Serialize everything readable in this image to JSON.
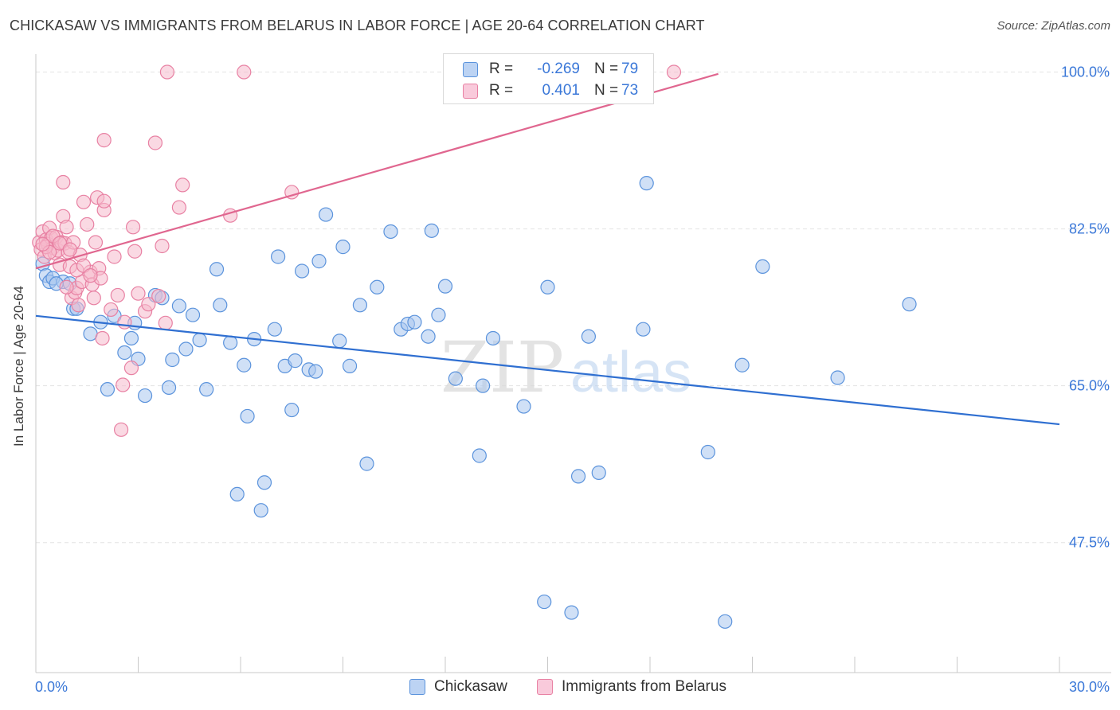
{
  "title": "CHICKASAW VS IMMIGRANTS FROM BELARUS IN LABOR FORCE | AGE 20-64 CORRELATION CHART",
  "source": "Source: ZipAtlas.com",
  "watermark": {
    "zip": "ZIP",
    "atlas": "atlas"
  },
  "legend": {
    "r_label": "R =",
    "n_label": "N =",
    "rows": [
      {
        "r": "-0.269",
        "n": "79"
      },
      {
        "r": "0.401",
        "n": "73"
      }
    ]
  },
  "colors": {
    "blue_fill": "#a9c6ef",
    "blue_stroke": "#5b93dc",
    "blue_line": "#2f6fd1",
    "pink_fill": "#f6b9cc",
    "pink_stroke": "#e881a3",
    "pink_line": "#e0668f",
    "axis_text": "#3b78d8",
    "grid": "#e3e3e3"
  },
  "chart_data": {
    "type": "scatter",
    "title": "CHICKASAW VS IMMIGRANTS FROM BELARUS IN LABOR FORCE | AGE 20-64 CORRELATION CHART",
    "xlabel": "",
    "ylabel": "In Labor Force | Age 20-64",
    "xlim": [
      0,
      30
    ],
    "ylim": [
      33,
      102
    ],
    "x_tick_labels": [
      "0.0%",
      "30.0%"
    ],
    "y_ticks": [
      100.0,
      82.5,
      65.0,
      47.5
    ],
    "y_tick_labels": [
      "100.0%",
      "82.5%",
      "65.0%",
      "47.5%"
    ],
    "grid": true,
    "legend_position": "top-center",
    "series": [
      {
        "name": "Chickasaw",
        "color": "#5b93dc",
        "r": -0.269,
        "n": 79,
        "trend": {
          "x": [
            0,
            30
          ],
          "y": [
            72.8,
            60.7
          ]
        },
        "points": [
          [
            0.2,
            78.6
          ],
          [
            0.3,
            77.3
          ],
          [
            0.4,
            76.6
          ],
          [
            0.5,
            77.0
          ],
          [
            0.8,
            76.6
          ],
          [
            1.0,
            76.4
          ],
          [
            1.1,
            73.6
          ],
          [
            1.2,
            73.6
          ],
          [
            1.6,
            70.8
          ],
          [
            1.9,
            72.1
          ],
          [
            2.1,
            64.6
          ],
          [
            2.3,
            72.8
          ],
          [
            2.6,
            68.7
          ],
          [
            2.8,
            70.3
          ],
          [
            2.9,
            72.0
          ],
          [
            3.0,
            68.0
          ],
          [
            3.2,
            63.9
          ],
          [
            3.5,
            75.1
          ],
          [
            3.7,
            74.8
          ],
          [
            3.9,
            64.8
          ],
          [
            4.0,
            67.9
          ],
          [
            4.2,
            73.9
          ],
          [
            4.4,
            69.1
          ],
          [
            4.6,
            72.9
          ],
          [
            4.8,
            70.1
          ],
          [
            5.0,
            64.6
          ],
          [
            5.3,
            78.0
          ],
          [
            5.4,
            74.0
          ],
          [
            5.7,
            69.8
          ],
          [
            5.9,
            52.9
          ],
          [
            6.1,
            67.3
          ],
          [
            6.2,
            61.6
          ],
          [
            6.4,
            70.2
          ],
          [
            6.6,
            51.1
          ],
          [
            6.7,
            54.2
          ],
          [
            7.0,
            71.3
          ],
          [
            7.1,
            79.4
          ],
          [
            7.3,
            67.2
          ],
          [
            7.5,
            62.3
          ],
          [
            7.6,
            67.8
          ],
          [
            7.8,
            77.8
          ],
          [
            8.0,
            66.8
          ],
          [
            8.2,
            66.6
          ],
          [
            8.3,
            78.9
          ],
          [
            8.5,
            84.1
          ],
          [
            8.9,
            70.0
          ],
          [
            9.0,
            80.5
          ],
          [
            9.2,
            67.2
          ],
          [
            9.5,
            74.0
          ],
          [
            9.7,
            56.3
          ],
          [
            10.0,
            76.0
          ],
          [
            10.4,
            82.2
          ],
          [
            10.7,
            71.3
          ],
          [
            10.9,
            71.9
          ],
          [
            11.1,
            72.1
          ],
          [
            11.5,
            70.5
          ],
          [
            11.6,
            82.3
          ],
          [
            11.8,
            72.9
          ],
          [
            12.0,
            76.1
          ],
          [
            12.3,
            65.8
          ],
          [
            13.0,
            57.2
          ],
          [
            13.1,
            65.0
          ],
          [
            13.4,
            70.3
          ],
          [
            14.3,
            62.7
          ],
          [
            14.9,
            40.9
          ],
          [
            15.0,
            76.0
          ],
          [
            15.7,
            39.7
          ],
          [
            15.9,
            54.9
          ],
          [
            16.2,
            70.5
          ],
          [
            16.5,
            55.3
          ],
          [
            17.8,
            71.3
          ],
          [
            17.9,
            87.6
          ],
          [
            19.7,
            57.6
          ],
          [
            20.2,
            38.7
          ],
          [
            20.7,
            67.3
          ],
          [
            21.3,
            78.3
          ],
          [
            23.5,
            65.9
          ],
          [
            25.6,
            74.1
          ],
          [
            0.6,
            76.4
          ]
        ]
      },
      {
        "name": "Immigrants from Belarus",
        "color": "#e881a3",
        "r": 0.401,
        "n": 73,
        "trend": {
          "x": [
            0,
            20
          ],
          "y": [
            78.1,
            99.8
          ]
        },
        "points": [
          [
            0.1,
            81.0
          ],
          [
            0.15,
            80.2
          ],
          [
            0.2,
            82.2
          ],
          [
            0.25,
            79.4
          ],
          [
            0.3,
            81.3
          ],
          [
            0.35,
            80.8
          ],
          [
            0.4,
            82.6
          ],
          [
            0.45,
            81.5
          ],
          [
            0.5,
            80.4
          ],
          [
            0.55,
            79.8
          ],
          [
            0.6,
            81.6
          ],
          [
            0.65,
            80.1
          ],
          [
            0.7,
            78.5
          ],
          [
            0.75,
            81.0
          ],
          [
            0.8,
            83.9
          ],
          [
            0.8,
            87.7
          ],
          [
            0.85,
            80.9
          ],
          [
            0.9,
            82.7
          ],
          [
            0.95,
            79.9
          ],
          [
            1.0,
            78.3
          ],
          [
            1.05,
            74.8
          ],
          [
            1.1,
            81.0
          ],
          [
            1.15,
            75.4
          ],
          [
            1.2,
            75.9
          ],
          [
            1.25,
            74.0
          ],
          [
            1.3,
            79.6
          ],
          [
            1.35,
            76.6
          ],
          [
            1.4,
            85.5
          ],
          [
            1.5,
            83.0
          ],
          [
            1.6,
            77.7
          ],
          [
            1.65,
            76.3
          ],
          [
            1.7,
            74.8
          ],
          [
            1.75,
            81.0
          ],
          [
            1.8,
            86.0
          ],
          [
            1.85,
            78.1
          ],
          [
            1.9,
            77.0
          ],
          [
            1.95,
            70.3
          ],
          [
            2.0,
            84.6
          ],
          [
            2.0,
            85.6
          ],
          [
            2.0,
            92.4
          ],
          [
            2.2,
            73.5
          ],
          [
            2.3,
            79.4
          ],
          [
            2.4,
            75.1
          ],
          [
            2.5,
            60.1
          ],
          [
            2.55,
            65.1
          ],
          [
            2.6,
            72.1
          ],
          [
            2.8,
            67.0
          ],
          [
            2.85,
            82.7
          ],
          [
            2.9,
            80.0
          ],
          [
            3.0,
            75.3
          ],
          [
            3.2,
            73.3
          ],
          [
            3.3,
            74.1
          ],
          [
            3.5,
            92.1
          ],
          [
            3.6,
            75.0
          ],
          [
            3.7,
            80.6
          ],
          [
            3.8,
            72.0
          ],
          [
            3.85,
            100.0
          ],
          [
            4.2,
            84.9
          ],
          [
            4.3,
            87.4
          ],
          [
            5.7,
            84.0
          ],
          [
            6.1,
            100.0
          ],
          [
            7.5,
            86.6
          ],
          [
            18.7,
            100.0
          ],
          [
            0.3,
            80.5
          ],
          [
            0.5,
            81.7
          ],
          [
            0.7,
            80.9
          ],
          [
            1.0,
            80.2
          ],
          [
            1.2,
            77.9
          ],
          [
            0.4,
            79.9
          ],
          [
            0.9,
            76.0
          ],
          [
            1.4,
            78.4
          ],
          [
            1.6,
            77.3
          ],
          [
            0.2,
            80.8
          ]
        ]
      }
    ]
  }
}
